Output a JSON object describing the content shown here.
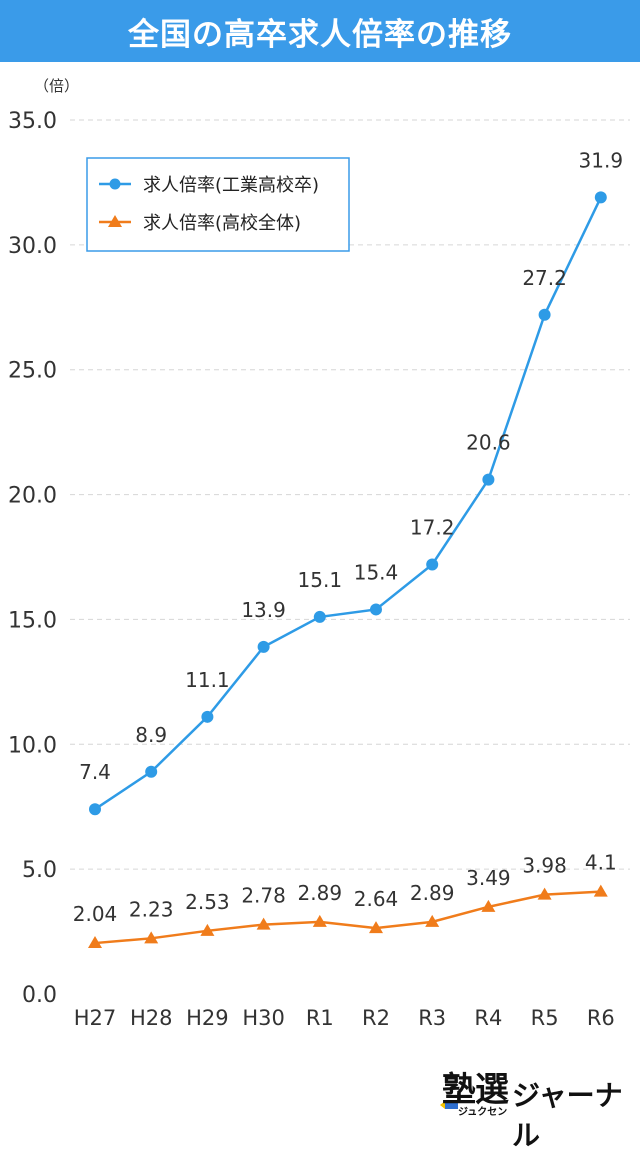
{
  "title": "全国の高卒求人倍率の推移",
  "brand": {
    "kanji": "塾選",
    "kana": "ジュクセン",
    "word": "ジャーナル"
  },
  "colors": {
    "banner": "#3a9be9",
    "series1": "#2e9be6",
    "series2": "#f07c1b",
    "grid": "#d6d6d6"
  },
  "chart_data": {
    "type": "line",
    "yunit": "（倍）",
    "ylim": [
      0,
      35
    ],
    "yticks": [
      "0.0",
      "5.0",
      "10.0",
      "15.0",
      "20.0",
      "25.0",
      "30.0",
      "35.0"
    ],
    "grid": true,
    "legend_position": "top-left",
    "categories": [
      "H27",
      "H28",
      "H29",
      "H30",
      "R1",
      "R2",
      "R3",
      "R4",
      "R5",
      "R6"
    ],
    "series": [
      {
        "name": "求人倍率(工業高校卒)",
        "marker": "circle",
        "values": [
          7.4,
          8.9,
          11.1,
          13.9,
          15.1,
          15.4,
          17.2,
          20.6,
          27.2,
          31.9
        ],
        "labels": [
          "7.4",
          "8.9",
          "11.1",
          "13.9",
          "15.1",
          "15.4",
          "17.2",
          "20.6",
          "27.2",
          "31.9"
        ]
      },
      {
        "name": "求人倍率(高校全体)",
        "marker": "triangle",
        "values": [
          2.04,
          2.23,
          2.53,
          2.78,
          2.89,
          2.64,
          2.89,
          3.49,
          3.98,
          4.1
        ],
        "labels": [
          "2.04",
          "2.23",
          "2.53",
          "2.78",
          "2.89",
          "2.64",
          "2.89",
          "3.49",
          "3.98",
          "4.1"
        ]
      }
    ]
  }
}
